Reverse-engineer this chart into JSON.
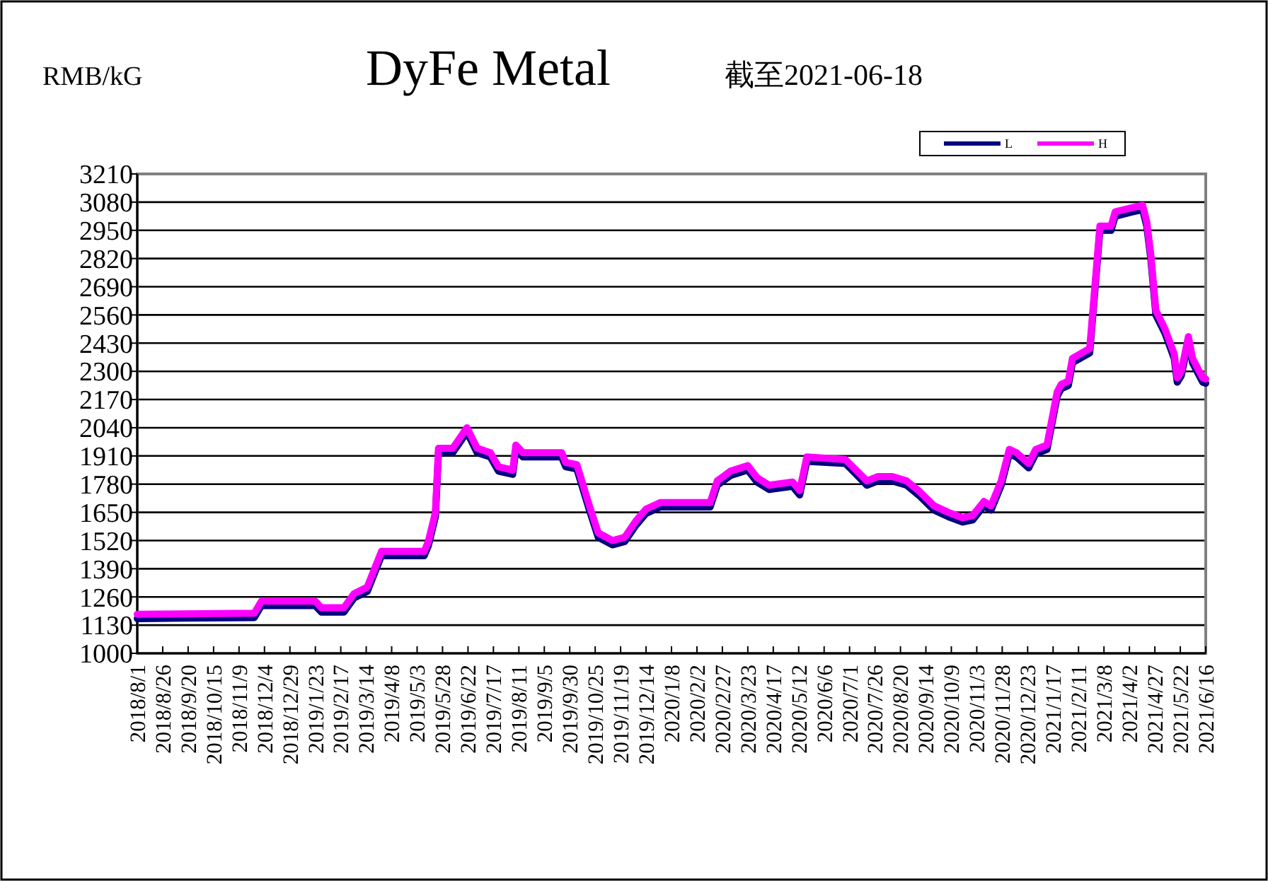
{
  "chart_data": {
    "type": "line",
    "title": "DyFe Metal",
    "subtitle": "截至2021-06-18",
    "ylabel": "RMB/kG",
    "x": [
      "2018-08-01",
      "2018-11-24",
      "2018-12-01",
      "2019-01-23",
      "2019-01-29",
      "2019-02-20",
      "2019-03-02",
      "2019-03-15",
      "2019-03-29",
      "2019-05-10",
      "2019-05-14",
      "2019-05-21",
      "2019-05-24",
      "2019-06-07",
      "2019-06-21",
      "2019-07-01",
      "2019-07-14",
      "2019-07-22",
      "2019-08-05",
      "2019-08-08",
      "2019-08-15",
      "2019-09-22",
      "2019-09-26",
      "2019-10-07",
      "2019-10-19",
      "2019-10-28",
      "2019-11-11",
      "2019-11-23",
      "2019-12-04",
      "2019-12-14",
      "2019-12-28",
      "2020-02-15",
      "2020-02-22",
      "2020-03-06",
      "2020-03-23",
      "2020-04-01",
      "2020-04-13",
      "2020-05-06",
      "2020-05-13",
      "2020-05-20",
      "2020-06-27",
      "2020-07-18",
      "2020-07-29",
      "2020-08-12",
      "2020-08-26",
      "2020-09-08",
      "2020-09-22",
      "2020-10-06",
      "2020-10-20",
      "2020-10-30",
      "2020-11-10",
      "2020-11-17",
      "2020-11-27",
      "2020-12-05",
      "2020-12-12",
      "2020-12-24",
      "2020-12-31",
      "2021-01-11",
      "2021-01-21",
      "2021-01-25",
      "2021-02-01",
      "2021-02-05",
      "2021-02-22",
      "2021-03-04",
      "2021-03-15",
      "2021-03-19",
      "2021-04-05",
      "2021-04-15",
      "2021-04-19",
      "2021-04-23",
      "2021-04-28",
      "2021-05-07",
      "2021-05-16",
      "2021-05-19",
      "2021-05-23",
      "2021-05-30",
      "2021-06-03",
      "2021-06-13",
      "2021-06-16"
    ],
    "series": [
      {
        "name": "L",
        "color": "#000080",
        "values": [
          1160,
          1165,
          1220,
          1220,
          1190,
          1190,
          1255,
          1285,
          1450,
          1450,
          1495,
          1630,
          1925,
          1925,
          2020,
          1925,
          1905,
          1840,
          1825,
          1940,
          1905,
          1905,
          1860,
          1850,
          1665,
          1535,
          1500,
          1515,
          1590,
          1645,
          1675,
          1675,
          1775,
          1820,
          1845,
          1790,
          1755,
          1770,
          1730,
          1885,
          1875,
          1775,
          1795,
          1795,
          1775,
          1725,
          1660,
          1630,
          1605,
          1615,
          1680,
          1660,
          1775,
          1920,
          1905,
          1855,
          1920,
          1940,
          2185,
          2220,
          2235,
          2340,
          2385,
          2950,
          2950,
          3015,
          3035,
          3045,
          2970,
          2820,
          2560,
          2475,
          2360,
          2250,
          2280,
          2440,
          2340,
          2250,
          2245
        ]
      },
      {
        "name": "H",
        "color": "#ff00ff",
        "values": [
          1180,
          1185,
          1240,
          1240,
          1210,
          1210,
          1275,
          1305,
          1470,
          1470,
          1515,
          1650,
          1945,
          1945,
          2040,
          1945,
          1925,
          1860,
          1845,
          1960,
          1925,
          1925,
          1880,
          1870,
          1685,
          1555,
          1520,
          1535,
          1610,
          1665,
          1695,
          1695,
          1795,
          1840,
          1865,
          1810,
          1775,
          1790,
          1750,
          1905,
          1893,
          1795,
          1815,
          1815,
          1795,
          1745,
          1680,
          1650,
          1625,
          1635,
          1700,
          1680,
          1795,
          1940,
          1925,
          1875,
          1940,
          1960,
          2205,
          2240,
          2255,
          2360,
          2405,
          2970,
          2970,
          3035,
          3055,
          3065,
          2990,
          2840,
          2580,
          2495,
          2380,
          2270,
          2300,
          2460,
          2360,
          2270,
          2265
        ]
      }
    ],
    "xlim": [
      "2018-08-01",
      "2021-06-16"
    ],
    "xticks": [
      {
        "value": "2018-08-01",
        "label": "2018/8/1"
      },
      {
        "value": "2018-08-26",
        "label": "2018/8/26"
      },
      {
        "value": "2018-09-20",
        "label": "2018/9/20"
      },
      {
        "value": "2018-10-15",
        "label": "2018/10/15"
      },
      {
        "value": "2018-11-09",
        "label": "2018/11/9"
      },
      {
        "value": "2018-12-04",
        "label": "2018/12/4"
      },
      {
        "value": "2018-12-29",
        "label": "2018/12/29"
      },
      {
        "value": "2019-01-23",
        "label": "2019/1/23"
      },
      {
        "value": "2019-02-17",
        "label": "2019/2/17"
      },
      {
        "value": "2019-03-14",
        "label": "2019/3/14"
      },
      {
        "value": "2019-04-08",
        "label": "2019/4/8"
      },
      {
        "value": "2019-05-03",
        "label": "2019/5/3"
      },
      {
        "value": "2019-05-28",
        "label": "2019/5/28"
      },
      {
        "value": "2019-06-22",
        "label": "2019/6/22"
      },
      {
        "value": "2019-07-17",
        "label": "2019/7/17"
      },
      {
        "value": "2019-08-11",
        "label": "2019/8/11"
      },
      {
        "value": "2019-09-05",
        "label": "2019/9/5"
      },
      {
        "value": "2019-09-30",
        "label": "2019/9/30"
      },
      {
        "value": "2019-10-25",
        "label": "2019/10/25"
      },
      {
        "value": "2019-11-19",
        "label": "2019/11/19"
      },
      {
        "value": "2019-12-14",
        "label": "2019/12/14"
      },
      {
        "value": "2020-01-08",
        "label": "2020/1/8"
      },
      {
        "value": "2020-02-02",
        "label": "2020/2/2"
      },
      {
        "value": "2020-02-27",
        "label": "2020/2/27"
      },
      {
        "value": "2020-03-23",
        "label": "2020/3/23"
      },
      {
        "value": "2020-04-17",
        "label": "2020/4/17"
      },
      {
        "value": "2020-05-12",
        "label": "2020/5/12"
      },
      {
        "value": "2020-06-06",
        "label": "2020/6/6"
      },
      {
        "value": "2020-07-01",
        "label": "2020/7/1"
      },
      {
        "value": "2020-07-26",
        "label": "2020/7/26"
      },
      {
        "value": "2020-08-20",
        "label": "2020/8/20"
      },
      {
        "value": "2020-09-14",
        "label": "2020/9/14"
      },
      {
        "value": "2020-10-09",
        "label": "2020/10/9"
      },
      {
        "value": "2020-11-03",
        "label": "2020/11/3"
      },
      {
        "value": "2020-11-28",
        "label": "2020/11/28"
      },
      {
        "value": "2020-12-23",
        "label": "2020/12/23"
      },
      {
        "value": "2021-01-17",
        "label": "2021/1/17"
      },
      {
        "value": "2021-02-11",
        "label": "2021/2/11"
      },
      {
        "value": "2021-03-08",
        "label": "2021/3/8"
      },
      {
        "value": "2021-04-02",
        "label": "2021/4/2"
      },
      {
        "value": "2021-04-27",
        "label": "2021/4/27"
      },
      {
        "value": "2021-05-22",
        "label": "2021/5/22"
      },
      {
        "value": "2021-06-16",
        "label": "2021/6/16"
      }
    ],
    "ylim": [
      1000,
      3210
    ],
    "yticks": [
      1000,
      1130,
      1260,
      1390,
      1520,
      1650,
      1780,
      1910,
      2040,
      2170,
      2300,
      2430,
      2560,
      2690,
      2820,
      2950,
      3080,
      3210
    ],
    "grid": "y",
    "legend": "top right",
    "marker": "none",
    "line_style": "solid"
  }
}
